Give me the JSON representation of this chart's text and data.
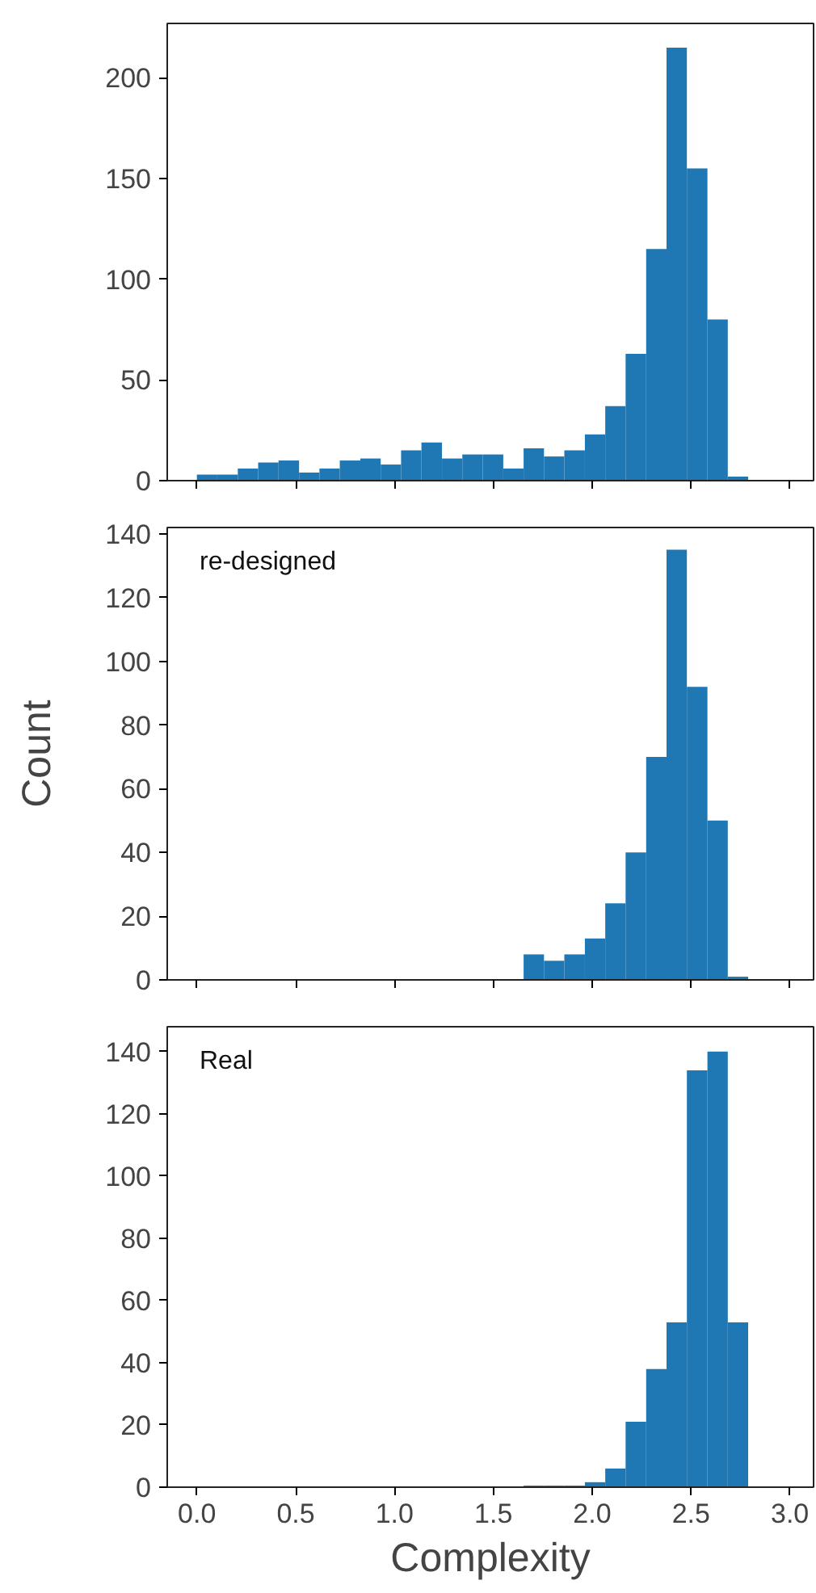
{
  "chart_data": [
    {
      "type": "histogram",
      "color": "#1f77b4",
      "tick_labels": "y",
      "bins": [
        0,
        0.103,
        0.207,
        0.31,
        0.413,
        0.517,
        0.62,
        0.723,
        0.827,
        0.93,
        1.033,
        1.136,
        1.24,
        1.343,
        1.446,
        1.55,
        1.653,
        1.756,
        1.859,
        1.963,
        2.066,
        2.169,
        2.273,
        2.376,
        2.479,
        2.583,
        2.686,
        2.789
      ],
      "values": [
        3,
        3,
        6,
        9,
        10,
        4,
        6,
        10,
        11,
        8,
        15,
        19,
        11,
        13,
        13,
        6,
        16,
        12,
        15,
        23,
        37,
        63,
        115,
        215,
        155,
        80,
        2
      ],
      "xlim": [
        -0.15,
        3.12
      ],
      "xticks": [
        0,
        0.5,
        1,
        1.5,
        2,
        2.5,
        3
      ],
      "ylim": [
        0,
        227
      ],
      "yticks": [
        0,
        50,
        100,
        150,
        200
      ]
    },
    {
      "type": "histogram",
      "color": "#1f77b4",
      "annotations": [
        "re-designed"
      ],
      "tick_labels": "y",
      "ylabel": "Count",
      "bins": [
        0,
        0.103,
        0.207,
        0.31,
        0.413,
        0.517,
        0.62,
        0.723,
        0.827,
        0.93,
        1.033,
        1.136,
        1.24,
        1.343,
        1.446,
        1.55,
        1.653,
        1.756,
        1.859,
        1.963,
        2.066,
        2.169,
        2.273,
        2.376,
        2.479,
        2.583,
        2.686,
        2.789
      ],
      "values": [
        0,
        0,
        0,
        0,
        0,
        0,
        0,
        0,
        0,
        0,
        0,
        0,
        0,
        0,
        0,
        0,
        8,
        6,
        8,
        13,
        24,
        40,
        70,
        135,
        92,
        50,
        1
      ],
      "xlim": [
        -0.15,
        3.12
      ],
      "xticks": [
        0,
        0.5,
        1,
        1.5,
        2,
        2.5,
        3
      ],
      "ylim": [
        0,
        142
      ],
      "yticks": [
        0,
        20,
        40,
        60,
        80,
        100,
        120,
        140
      ]
    },
    {
      "type": "histogram",
      "color": "#1f77b4",
      "annotations": [
        "Real"
      ],
      "xlabel": "Complexity",
      "bins": [
        0,
        0.103,
        0.207,
        0.31,
        0.413,
        0.517,
        0.62,
        0.723,
        0.827,
        0.93,
        1.033,
        1.136,
        1.24,
        1.343,
        1.446,
        1.55,
        1.653,
        1.756,
        1.859,
        1.963,
        2.066,
        2.169,
        2.273,
        2.376,
        2.479,
        2.583,
        2.686,
        2.789
      ],
      "values": [
        0,
        0,
        0,
        0,
        0,
        0,
        0,
        0,
        0,
        0,
        0,
        0,
        0,
        0,
        0,
        0,
        0.5,
        0.5,
        0.5,
        1.6,
        6,
        21,
        38,
        53,
        134,
        140,
        53
      ],
      "xlim": [
        -0.15,
        3.12
      ],
      "xticks": [
        {
          "value": 0,
          "label": "0.0"
        },
        0.5,
        {
          "value": 1,
          "label": "1.0"
        },
        1.5,
        {
          "value": 2,
          "label": "2.0"
        },
        2.5,
        {
          "value": 3,
          "label": "3.0"
        }
      ],
      "ylim": [
        0,
        148
      ],
      "yticks": [
        0,
        20,
        40,
        60,
        80,
        100,
        120,
        140
      ]
    }
  ]
}
